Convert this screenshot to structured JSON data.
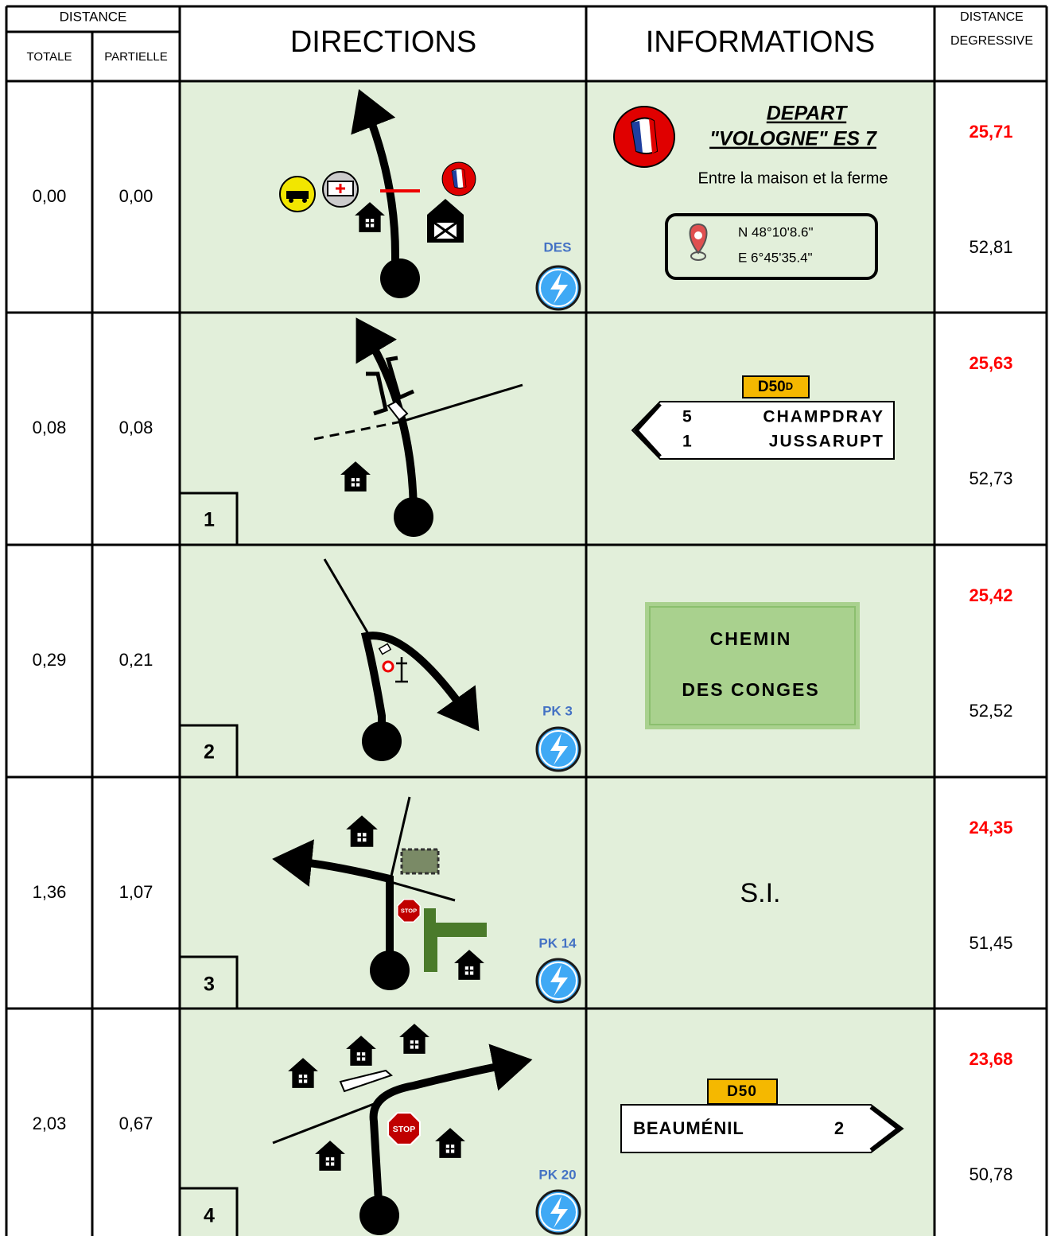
{
  "header": {
    "distance": "DISTANCE",
    "totale": "TOTALE",
    "partielle": "PARTIELLE",
    "directions": "DIRECTIONS",
    "informations": "INFORMATIONS",
    "degressive": [
      "DISTANCE",
      "DEGRESSIVE"
    ]
  },
  "rows": [
    {
      "totale": "0,00",
      "partielle": "0,00",
      "marker": "DES",
      "degressive_red": "25,71",
      "degressive": "52,81",
      "info": {
        "title": "DEPART",
        "subtitle": "\"VOLOGNE\" ES 7",
        "note": "Entre la maison et la ferme",
        "lat": "N 48°10'8.6\"",
        "lon": "E 6°45'35.4\""
      }
    },
    {
      "index": "1",
      "totale": "0,08",
      "partielle": "0,08",
      "degressive_red": "25,63",
      "degressive": "52,73",
      "info": {
        "road": "D50",
        "road_suffix": "D",
        "destinations": [
          {
            "distance": "5",
            "name": "CHAMPDRAY"
          },
          {
            "distance": "1",
            "name": "JUSSARUPT"
          }
        ]
      }
    },
    {
      "index": "2",
      "totale": "0,29",
      "partielle": "0,21",
      "marker": "PK 3",
      "degressive_red": "25,42",
      "degressive": "52,52",
      "info": {
        "plaque": [
          "CHEMIN",
          "DES CONGES"
        ]
      }
    },
    {
      "index": "3",
      "totale": "1,36",
      "partielle": "1,07",
      "marker": "PK 14",
      "degressive_red": "24,35",
      "degressive": "51,45",
      "info": {
        "text": "S.I."
      }
    },
    {
      "index": "4",
      "totale": "2,03",
      "partielle": "0,67",
      "marker": "PK 20",
      "degressive_red": "23,68",
      "degressive": "50,78",
      "info": {
        "road": "D50",
        "destinations": [
          {
            "name": "BEAUMÉNIL",
            "distance": "2"
          }
        ]
      }
    }
  ]
}
